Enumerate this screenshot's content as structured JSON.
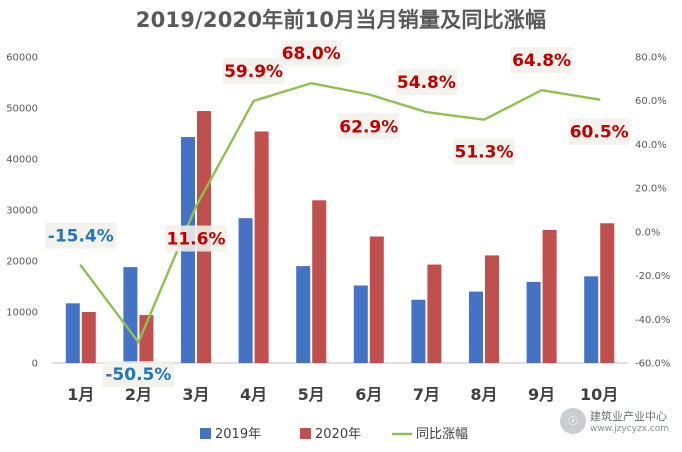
{
  "title": "2019/2020年前10月当月销量及同比涨幅",
  "chart_data": {
    "type": "bar",
    "categories": [
      "1月",
      "2月",
      "3月",
      "4月",
      "5月",
      "6月",
      "7月",
      "8月",
      "9月",
      "10月"
    ],
    "series": [
      {
        "name": "2019年",
        "type": "bar",
        "axis": "left",
        "color": "#4472c4",
        "values": [
          11700,
          18800,
          44300,
          28400,
          19000,
          15200,
          12400,
          14000,
          15900,
          17000
        ]
      },
      {
        "name": "2020年",
        "type": "bar",
        "axis": "left",
        "color": "#c0504d",
        "values": [
          10000,
          9400,
          49400,
          45400,
          31900,
          24800,
          19300,
          21100,
          26100,
          27400
        ]
      },
      {
        "name": "同比涨幅",
        "type": "line",
        "axis": "right",
        "color": "#92c050",
        "values": [
          -15.4,
          -50.5,
          11.6,
          59.9,
          68.0,
          62.9,
          54.8,
          51.3,
          64.8,
          60.5
        ]
      }
    ],
    "data_labels": [
      "-15.4%",
      "-50.5%",
      "11.6%",
      "59.9%",
      "68.0%",
      "62.9%",
      "54.8%",
      "51.3%",
      "64.8%",
      "60.5%"
    ],
    "data_label_colors": [
      "#1f77c0",
      "#1f77c0",
      "#c00000",
      "#c00000",
      "#c00000",
      "#c00000",
      "#c00000",
      "#c00000",
      "#c00000",
      "#c00000"
    ],
    "y_left": {
      "ylim": [
        0,
        60000
      ],
      "ticks": [
        0,
        10000,
        20000,
        30000,
        40000,
        50000,
        60000
      ],
      "tick_labels": [
        "0",
        "10000",
        "20000",
        "30000",
        "40000",
        "50000",
        "60000"
      ]
    },
    "y_right": {
      "ylim": [
        -60,
        80
      ],
      "ticks": [
        -60,
        -40,
        -20,
        0,
        20,
        40,
        60,
        80
      ],
      "tick_labels": [
        "-60.0%",
        "-40.0%",
        "-20.0%",
        "0.0%",
        "20.0%",
        "40.0%",
        "60.0%",
        "80.0%"
      ]
    },
    "grid": false,
    "legend_position": "bottom"
  },
  "watermark": {
    "logo_text": "☉",
    "name": "建筑业产业中心",
    "url": "www.jzycyzx.com"
  }
}
